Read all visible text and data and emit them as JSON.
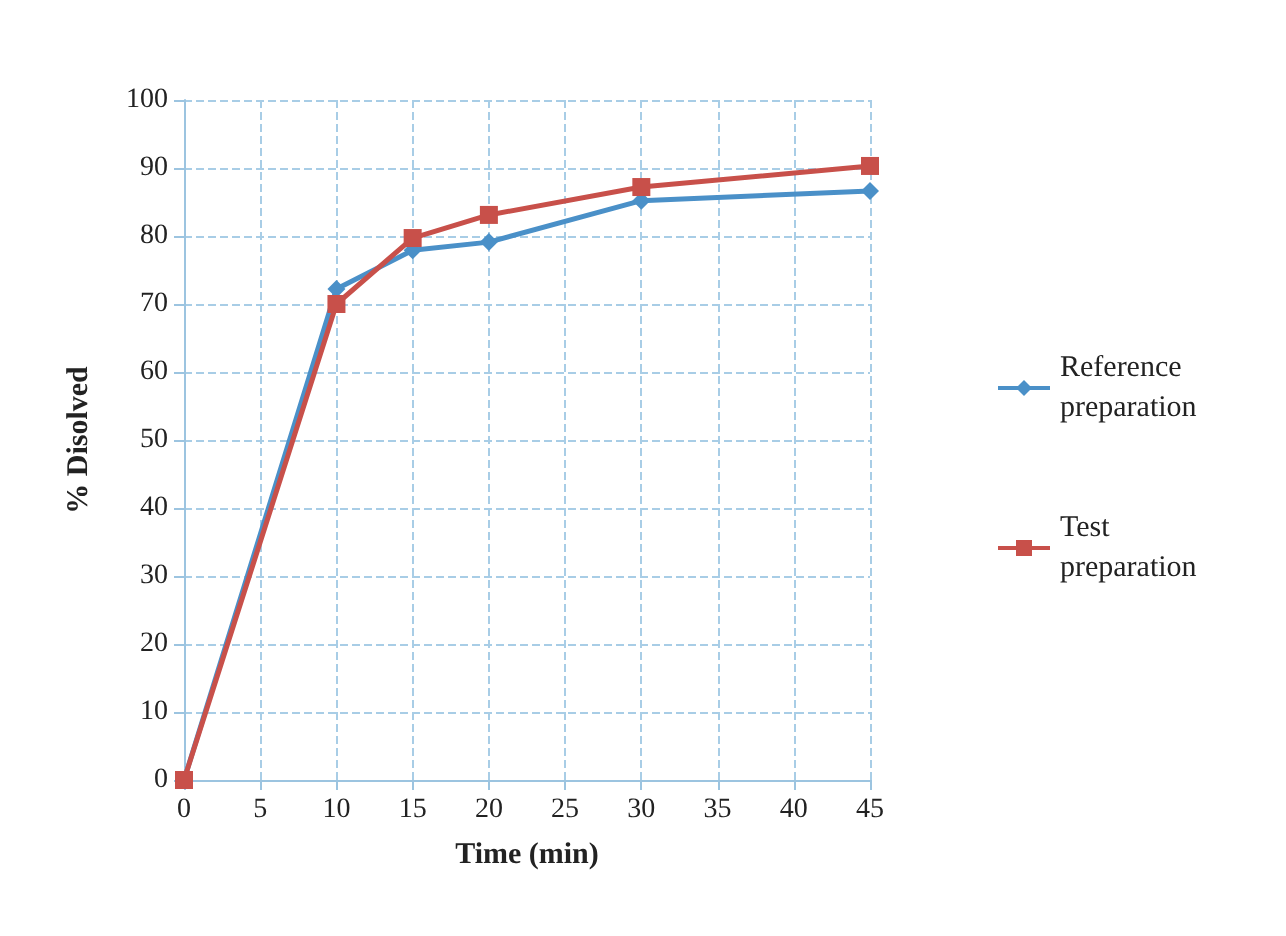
{
  "chart_data": {
    "type": "line",
    "xlabel": "Time (min)",
    "ylabel": "% Disolved",
    "x": [
      0,
      10,
      15,
      20,
      30,
      45
    ],
    "series": [
      {
        "name": "Reference preparation",
        "color": "#4a90c8",
        "marker": "diamond",
        "values": [
          0,
          72.2,
          77.9,
          79.1,
          85.2,
          86.6
        ]
      },
      {
        "name": "Test preparation",
        "color": "#c8504a",
        "marker": "square",
        "values": [
          0,
          70,
          79.7,
          83.1,
          87.2,
          90.3
        ]
      }
    ],
    "xlim": [
      0,
      45
    ],
    "xticks": [
      0,
      5,
      10,
      15,
      20,
      25,
      30,
      35,
      40,
      45
    ],
    "ylim": [
      0,
      100
    ],
    "yticks": [
      0,
      10,
      20,
      30,
      40,
      50,
      60,
      70,
      80,
      90,
      100
    ],
    "grid": true,
    "legend": "right",
    "line_style": "solid"
  }
}
